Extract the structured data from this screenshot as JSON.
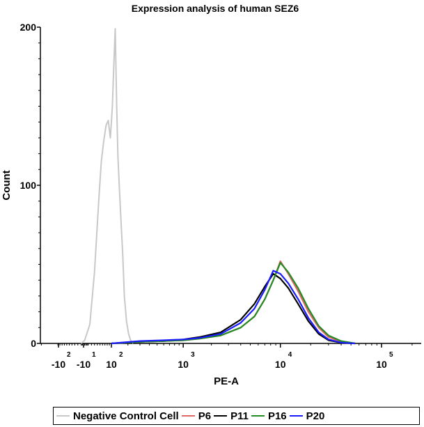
{
  "chart_data": {
    "type": "line",
    "title": "Expression analysis of human SEZ6",
    "xlabel": "PE-A",
    "ylabel": "Count",
    "ylim": [
      0,
      200
    ],
    "yticks": [
      0,
      100,
      200
    ],
    "xscale": "biexponential",
    "xlim_log": [
      1.4,
      5.4
    ],
    "xticks": [
      {
        "base": "-10",
        "exp": "2",
        "value": -100
      },
      {
        "base": "-10",
        "exp": "1",
        "value": -10
      },
      {
        "base": "10",
        "exp": "2",
        "value": 100
      },
      {
        "base": "10",
        "exp": "3",
        "value": 1000
      },
      {
        "base": "10",
        "exp": "4",
        "value": 10000
      },
      {
        "base": "10",
        "exp": "5",
        "value": 100000
      }
    ],
    "legend_position": "bottom",
    "grid": false,
    "series": [
      {
        "name": "Negative Control Cell",
        "color": "#c8c8c8",
        "x": [
          -10,
          0,
          15,
          30,
          45,
          55,
          65,
          75,
          85,
          95,
          100,
          105,
          112,
          120,
          128,
          135,
          145,
          155,
          165,
          175,
          190,
          205,
          220,
          240
        ],
        "y": [
          0,
          2,
          12,
          45,
          90,
          115,
          128,
          138,
          141,
          130,
          140,
          150,
          175,
          199,
          150,
          118,
          95,
          75,
          55,
          30,
          14,
          6,
          2,
          0
        ]
      },
      {
        "name": "P6",
        "color": "#e06666",
        "x": [
          100,
          300,
          600,
          1000,
          1500,
          2500,
          4000,
          5500,
          7000,
          8500,
          10000,
          12000,
          15000,
          19000,
          24000,
          30000,
          40000,
          55000
        ],
        "y": [
          0,
          1,
          1.5,
          2,
          3,
          5,
          10,
          17,
          28,
          40,
          52,
          44,
          33,
          20,
          10,
          4,
          1,
          0
        ]
      },
      {
        "name": "P11",
        "color": "#000000",
        "x": [
          100,
          300,
          600,
          1000,
          1500,
          2500,
          4000,
          5500,
          7000,
          8500,
          10000,
          12000,
          15000,
          19000,
          24000,
          30000,
          40000,
          55000
        ],
        "y": [
          0,
          1,
          1.5,
          2.5,
          4,
          7,
          15,
          25,
          36,
          44,
          41,
          35,
          25,
          14,
          6,
          2,
          0.5,
          0
        ]
      },
      {
        "name": "P16",
        "color": "#228b22",
        "x": [
          100,
          300,
          600,
          1000,
          1500,
          2500,
          4000,
          5500,
          7000,
          8500,
          10000,
          12000,
          15000,
          19000,
          24000,
          30000,
          40000,
          55000
        ],
        "y": [
          0,
          1,
          1.5,
          2,
          3,
          5,
          10,
          17,
          28,
          40,
          51,
          45,
          35,
          22,
          11,
          5,
          1.5,
          0
        ]
      },
      {
        "name": "P20",
        "color": "#1a1aff",
        "x": [
          100,
          300,
          600,
          1000,
          1500,
          2500,
          4000,
          5500,
          7000,
          8500,
          10000,
          12000,
          15000,
          19000,
          24000,
          30000,
          40000,
          55000
        ],
        "y": [
          0,
          1.5,
          2,
          2.5,
          3.5,
          6,
          13,
          22,
          34,
          46,
          44,
          38,
          28,
          16,
          7,
          2.5,
          0.5,
          0
        ]
      }
    ]
  }
}
